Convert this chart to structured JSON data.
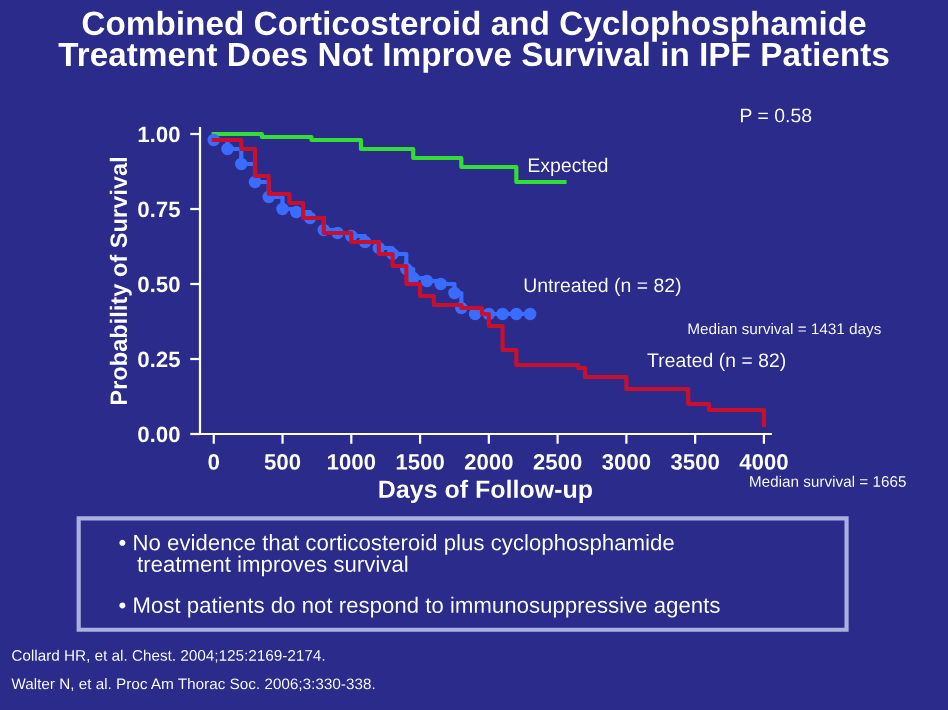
{
  "chart_data": {
    "type": "step",
    "title": "Combined Corticosteroid and Cyclophosphamide Treatment Does Not Improve Survival in IPF Patients",
    "xlabel": "Days of Follow-up",
    "ylabel": "Probability of Survival",
    "xlim": [
      -100,
      4050
    ],
    "ylim": [
      0,
      1.02
    ],
    "xticks": [
      0,
      500,
      1000,
      1500,
      2000,
      2500,
      3000,
      3500,
      4000
    ],
    "yticks": [
      {
        "value": 0,
        "label": "0.00"
      },
      {
        "value": 0.25,
        "label": "0.25"
      },
      {
        "value": 0.5,
        "label": "0.50"
      },
      {
        "value": 0.75,
        "label": "0.75"
      },
      {
        "value": 1,
        "label": "1.00"
      }
    ],
    "grid": false,
    "legend": false,
    "series": [
      {
        "name": "Expected",
        "color": "#33dd33",
        "x": [
          0,
          350,
          710,
          1070,
          1450,
          1800,
          2200,
          2550
        ],
        "values": [
          1.0,
          0.99,
          0.98,
          0.95,
          0.92,
          0.89,
          0.84,
          0.84
        ]
      },
      {
        "name": "Untreated (n = 82)",
        "color": "#3a6cff",
        "marker": "circle",
        "x": [
          0,
          100,
          200,
          300,
          400,
          500,
          600,
          700,
          800,
          900,
          1000,
          1100,
          1200,
          1300,
          1400,
          1450,
          1550,
          1650,
          1750,
          1800,
          1900,
          2000,
          2100,
          2200,
          2300
        ],
        "values": [
          0.98,
          0.95,
          0.9,
          0.84,
          0.79,
          0.75,
          0.74,
          0.72,
          0.68,
          0.67,
          0.66,
          0.64,
          0.62,
          0.6,
          0.55,
          0.52,
          0.51,
          0.5,
          0.47,
          0.42,
          0.4,
          0.4,
          0.4,
          0.4,
          0.4
        ]
      },
      {
        "name": "Treated (n = 82)",
        "color": "#c8102e",
        "x": [
          0,
          200,
          300,
          400,
          550,
          650,
          800,
          1000,
          1200,
          1300,
          1400,
          1500,
          1600,
          1800,
          1950,
          2000,
          2100,
          2200,
          2650,
          2700,
          3000,
          3450,
          3600,
          4000
        ],
        "values": [
          0.98,
          0.95,
          0.86,
          0.8,
          0.77,
          0.72,
          0.67,
          0.64,
          0.6,
          0.56,
          0.5,
          0.46,
          0.43,
          0.42,
          0.4,
          0.36,
          0.28,
          0.23,
          0.22,
          0.19,
          0.15,
          0.1,
          0.08,
          0.03
        ]
      }
    ],
    "annotations": [
      "P = 0.58",
      "Median survival = 1431 days",
      "Median survival = 1665",
      "• No evidence that corticosteroid plus cyclophosphamide\n   treatment improves survival",
      "• Most patients do not respond to immunosuppressive agents",
      "Collard HR, et al. Chest. 2004;125:2169-2174.",
      "Walter N, et al. Proc Am Thorac Soc. 2006;3:330-338."
    ]
  }
}
